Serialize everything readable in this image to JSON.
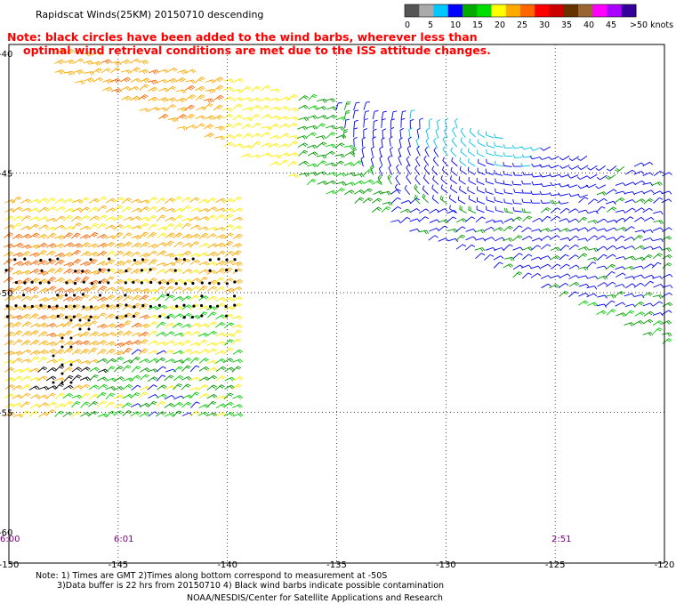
{
  "title": "Rapidscat Winds(25KM) 20150710 descending",
  "note_line1": "Note: black circles have been added to the wind barbs, wherever less than",
  "note_line2": "optimal wind retrieval conditions are met due to the ISS attitude changes.",
  "colorbar": {
    "labels": [
      "0",
      "5",
      "10",
      "15",
      "20",
      "25",
      "30",
      "35",
      "40",
      "45",
      ">50 knots"
    ],
    "colors": [
      "#555555",
      "#aaaaaa",
      "#00c8ff",
      "#0000ff",
      "#00aa00",
      "#00dd00",
      "#ffff00",
      "#ffaa00",
      "#ff6600",
      "#ff0000",
      "#cc0000",
      "#663300",
      "#996633",
      "#ff00ff",
      "#aa00ff",
      "#330099"
    ]
  },
  "y_tick_labels": [
    "-40",
    "-45",
    "-50",
    "-55",
    "-60"
  ],
  "x_tick_labels": [
    "-150",
    "-145",
    "-140",
    "-135",
    "-130",
    "-125",
    "-120"
  ],
  "time_labels": [
    "6:00",
    "6:01",
    "2:51"
  ],
  "footer_line1": "Note: 1) Times are GMT 2)Times along bottom correspond to measurement at -50S",
  "footer_line2": "3)Data buffer is 22 hrs from 20150710 4) Black wind barbs indicate possible contamination",
  "footer_line3": "NOAA/NESDIS/Center for Satellite Applications and Research"
}
